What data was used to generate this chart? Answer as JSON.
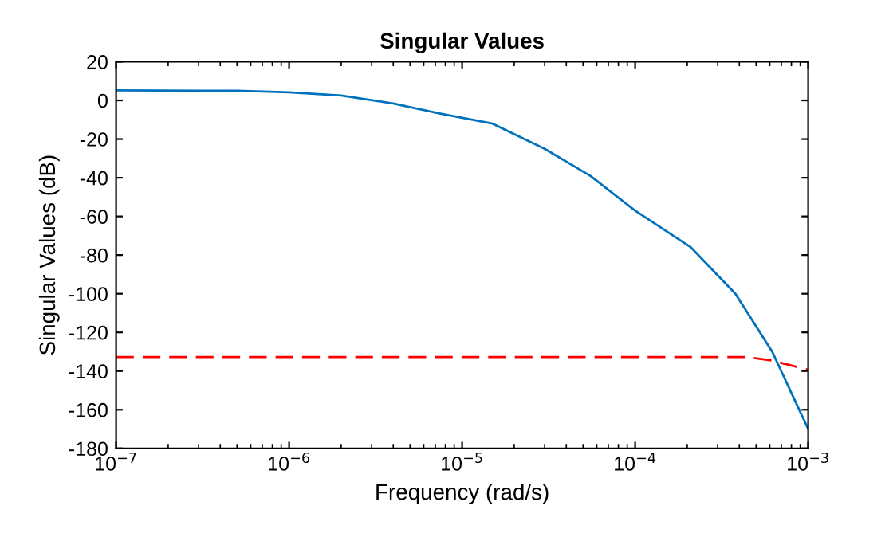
{
  "chart_data": {
    "type": "line",
    "title": "Singular Values",
    "xlabel": "Frequency (rad/s)",
    "ylabel": "Singular Values (dB)",
    "log": "x",
    "grid": false,
    "line_style": "solid",
    "marker": "none",
    "xlim": [
      1e-07,
      0.001
    ],
    "xticks": [
      {
        "value": 1e-07,
        "label": "10$^{−7}$"
      },
      {
        "value": 1e-06,
        "label": "10$^{−6}$"
      },
      {
        "value": 1e-05,
        "label": "10$^{−5}$"
      },
      {
        "value": 0.0001,
        "label": "10$^{−4}$"
      },
      {
        "value": 0.001,
        "label": "10$^{−3}$"
      }
    ],
    "ylim": [
      -180,
      20
    ],
    "yticks": [
      -180,
      -160,
      -140,
      -120,
      -100,
      -80,
      -60,
      -40,
      -20,
      0,
      20
    ],
    "series": [
      {
        "color": "#0072bd",
        "x": [
          1e-07,
          5e-07,
          1e-06,
          2e-06,
          4e-06,
          7.5e-06,
          1.5e-05,
          3e-05,
          5.5e-05,
          0.0001,
          0.00021,
          0.00038,
          0.00062,
          0.001
        ],
        "values": [
          5.2,
          5.0,
          4.2,
          2.5,
          -1.6,
          -6.8,
          -12,
          -25,
          -39,
          -57,
          -76,
          -100,
          -130,
          -170
        ]
      },
      {
        "color": "#ff0000",
        "line_style": "dashed",
        "x": [
          1e-07,
          0.00044,
          0.00062,
          0.001
        ],
        "values": [
          -132.7,
          -132.7,
          -134.6,
          -139.3
        ]
      }
    ]
  }
}
